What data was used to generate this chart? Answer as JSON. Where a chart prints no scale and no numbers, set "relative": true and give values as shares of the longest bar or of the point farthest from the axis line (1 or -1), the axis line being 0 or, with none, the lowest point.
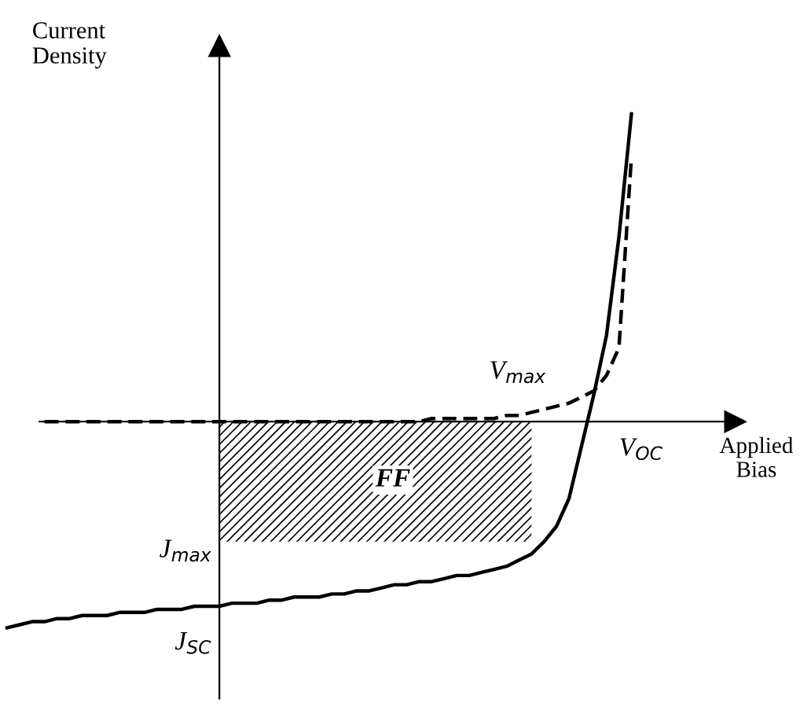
{
  "chart_data": {
    "type": "line",
    "relative": true,
    "xlabel": "Applied\nBias",
    "ylabel": "Current\nDensity",
    "categories": [
      null,
      null,
      null,
      null,
      null,
      null,
      null,
      null,
      null,
      null,
      null,
      null,
      null,
      null,
      null,
      null,
      null,
      null,
      null,
      null,
      null,
      null,
      null,
      null,
      null,
      null,
      null,
      null,
      null,
      null,
      null,
      null,
      null,
      null,
      null,
      null,
      null,
      null,
      null,
      null,
      null,
      null,
      null,
      null,
      null,
      null,
      null,
      null,
      null,
      null,
      null
    ],
    "series": [
      {
        "color": "#000000",
        "line_style": "solid",
        "values": [
          -0.67,
          -0.66,
          -0.65,
          -0.65,
          -0.64,
          -0.64,
          -0.63,
          -0.63,
          -0.63,
          -0.62,
          -0.62,
          -0.62,
          -0.61,
          -0.61,
          -0.61,
          -0.6,
          -0.6,
          -0.6,
          -0.59,
          -0.59,
          -0.59,
          -0.58,
          -0.58,
          -0.57,
          -0.57,
          -0.57,
          -0.56,
          -0.56,
          -0.55,
          -0.55,
          -0.54,
          -0.53,
          -0.53,
          -0.52,
          -0.52,
          -0.51,
          -0.5,
          -0.5,
          -0.49,
          -0.48,
          -0.47,
          -0.45,
          -0.43,
          -0.39,
          -0.34,
          -0.25,
          -0.08,
          0.09,
          0.28,
          0.6,
          1.0
        ]
      },
      {
        "color": "#000000",
        "line_style": "dashed",
        "values": [
          null,
          null,
          null,
          0,
          0,
          0,
          0,
          0,
          0,
          0,
          0,
          0,
          0,
          0,
          0,
          0,
          0,
          0,
          0,
          0,
          0,
          0,
          0,
          0,
          0,
          0,
          0,
          0,
          0,
          0,
          0,
          0,
          0,
          0,
          0.01,
          0.01,
          0.01,
          0.01,
          0.01,
          0.01,
          0.02,
          0.02,
          0.03,
          0.04,
          0.05,
          0.06,
          0.08,
          0.1,
          0.15,
          0.24,
          0.86
        ]
      },
      {
        "type": "area",
        "color": "#000000",
        "values": [
          null,
          null,
          null,
          null,
          null,
          null,
          null,
          null,
          null,
          null,
          null,
          null,
          null,
          null,
          null,
          null,
          null,
          -0.39,
          -0.39,
          -0.39,
          -0.39,
          -0.39,
          -0.39,
          -0.39,
          -0.39,
          -0.39,
          -0.39,
          -0.39,
          -0.39,
          -0.39,
          -0.39,
          -0.39,
          -0.39,
          -0.39,
          -0.39,
          -0.39,
          -0.39,
          -0.39,
          -0.39,
          -0.39,
          -0.39,
          -0.39,
          -0.39,
          null,
          null,
          null,
          null,
          null,
          null,
          null,
          null
        ]
      }
    ],
    "annotations": [
      "V$_{max}$",
      "V$_{OC}$",
      "J$_{max}$",
      "J$_{SC}$",
      "FF"
    ]
  }
}
